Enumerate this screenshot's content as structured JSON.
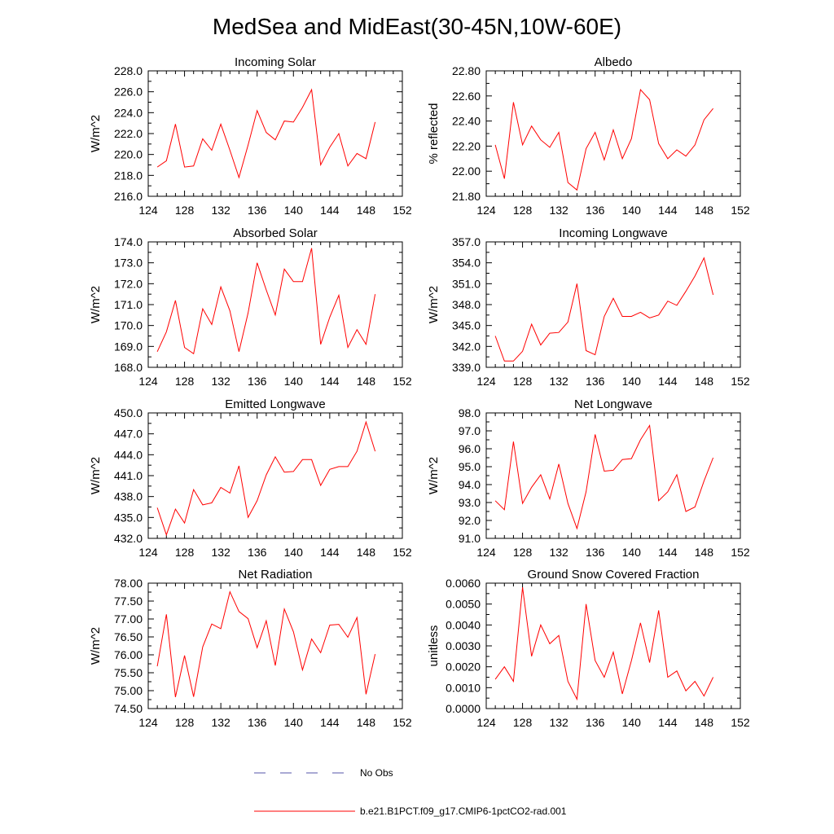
{
  "figure": {
    "title": "MedSea and MidEast(30-45N,10W-60E)"
  },
  "colors": {
    "model": "#ff0000",
    "obs": "#5555aa",
    "frame": "#000000"
  },
  "legend": {
    "placement": "bottom-center",
    "items": [
      {
        "label": "No Obs",
        "style": "dashed",
        "color": "#5555aa"
      },
      {
        "label": "b.e21.B1PCT.f09_g17.CMIP6-1pctCO2-rad.001",
        "style": "solid",
        "color": "#ff0000"
      }
    ]
  },
  "chart_data": [
    {
      "type": "line",
      "title": "Incoming Solar",
      "ylabel": "W/m^2",
      "xlabel": "",
      "xlim": [
        124,
        152
      ],
      "xticks": [
        "124",
        "128",
        "132",
        "136",
        "140",
        "144",
        "148",
        "152"
      ],
      "ylim": [
        216,
        228
      ],
      "yticks": [
        "216.0",
        "218.0",
        "220.0",
        "222.0",
        "224.0",
        "226.0",
        "228.0"
      ],
      "series": [
        {
          "color": "#ff0000",
          "x": [
            125,
            126,
            127,
            128,
            129,
            130,
            131,
            132,
            133,
            134,
            135,
            136,
            137,
            138,
            139,
            140,
            141,
            142,
            143,
            144,
            145,
            146,
            147,
            148,
            149
          ],
          "y": [
            218.8,
            219.4,
            222.9,
            218.8,
            218.9,
            221.5,
            220.4,
            222.9,
            220.4,
            217.8,
            220.9,
            224.2,
            222.1,
            221.4,
            223.2,
            223.1,
            224.5,
            226.2,
            219.0,
            220.7,
            222.0,
            218.9,
            220.1,
            219.6,
            223.1
          ]
        }
      ]
    },
    {
      "type": "line",
      "title": "Albedo",
      "ylabel": "% reflected",
      "xlabel": "",
      "xlim": [
        124,
        152
      ],
      "xticks": [
        "124",
        "128",
        "132",
        "136",
        "140",
        "144",
        "148",
        "152"
      ],
      "ylim": [
        21.8,
        22.8
      ],
      "yticks": [
        "21.80",
        "22.00",
        "22.20",
        "22.40",
        "22.60",
        "22.80"
      ],
      "series": [
        {
          "color": "#ff0000",
          "x": [
            125,
            126,
            127,
            128,
            129,
            130,
            131,
            132,
            133,
            134,
            135,
            136,
            137,
            138,
            139,
            140,
            141,
            142,
            143,
            144,
            145,
            146,
            147,
            148,
            149
          ],
          "y": [
            22.21,
            21.94,
            22.55,
            22.21,
            22.36,
            22.25,
            22.19,
            22.31,
            21.91,
            21.85,
            22.18,
            22.31,
            22.09,
            22.33,
            22.1,
            22.26,
            22.65,
            22.57,
            22.22,
            22.1,
            22.17,
            22.12,
            22.21,
            22.41,
            22.5
          ]
        }
      ]
    },
    {
      "type": "line",
      "title": "Absorbed Solar",
      "ylabel": "W/m^2",
      "xlabel": "",
      "xlim": [
        124,
        152
      ],
      "xticks": [
        "124",
        "128",
        "132",
        "136",
        "140",
        "144",
        "148",
        "152"
      ],
      "ylim": [
        168,
        174
      ],
      "yticks": [
        "168.0",
        "169.0",
        "170.0",
        "171.0",
        "172.0",
        "173.0",
        "174.0"
      ],
      "series": [
        {
          "color": "#ff0000",
          "x": [
            125,
            126,
            127,
            128,
            129,
            130,
            131,
            132,
            133,
            134,
            135,
            136,
            137,
            138,
            139,
            140,
            141,
            142,
            143,
            144,
            145,
            146,
            147,
            148,
            149
          ],
          "y": [
            168.75,
            169.7,
            171.2,
            168.95,
            168.65,
            170.8,
            170.05,
            171.85,
            170.7,
            168.75,
            170.6,
            173.0,
            171.7,
            170.5,
            172.7,
            172.1,
            172.1,
            173.7,
            169.1,
            170.4,
            171.45,
            168.95,
            169.8,
            169.1,
            171.5
          ]
        }
      ]
    },
    {
      "type": "line",
      "title": "Incoming Longwave",
      "ylabel": "W/m^2",
      "xlabel": "",
      "xlim": [
        124,
        152
      ],
      "xticks": [
        "124",
        "128",
        "132",
        "136",
        "140",
        "144",
        "148",
        "152"
      ],
      "ylim": [
        339,
        357
      ],
      "yticks": [
        "339.0",
        "342.0",
        "345.0",
        "348.0",
        "351.0",
        "354.0",
        "357.0"
      ],
      "series": [
        {
          "color": "#ff0000",
          "x": [
            125,
            126,
            127,
            128,
            129,
            130,
            131,
            132,
            133,
            134,
            135,
            136,
            137,
            138,
            139,
            140,
            141,
            142,
            143,
            144,
            145,
            146,
            147,
            148,
            149
          ],
          "y": [
            343.5,
            339.9,
            339.9,
            341.3,
            345.2,
            342.2,
            343.9,
            344.0,
            345.5,
            351.0,
            341.4,
            340.8,
            346.3,
            348.9,
            346.3,
            346.3,
            346.9,
            346.1,
            346.5,
            348.5,
            347.9,
            349.9,
            352.1,
            354.7,
            349.4
          ]
        }
      ]
    },
    {
      "type": "line",
      "title": "Emitted Longwave",
      "ylabel": "W/m^2",
      "xlabel": "",
      "xlim": [
        124,
        152
      ],
      "xticks": [
        "124",
        "128",
        "132",
        "136",
        "140",
        "144",
        "148",
        "152"
      ],
      "ylim": [
        432,
        450
      ],
      "yticks": [
        "432.0",
        "435.0",
        "438.0",
        "441.0",
        "444.0",
        "447.0",
        "450.0"
      ],
      "series": [
        {
          "color": "#ff0000",
          "x": [
            125,
            126,
            127,
            128,
            129,
            130,
            131,
            132,
            133,
            134,
            135,
            136,
            137,
            138,
            139,
            140,
            141,
            142,
            143,
            144,
            145,
            146,
            147,
            148,
            149
          ],
          "y": [
            436.4,
            432.5,
            436.2,
            434.2,
            439.0,
            436.8,
            437.1,
            439.3,
            438.5,
            442.4,
            435.0,
            437.4,
            441.1,
            443.7,
            441.5,
            441.6,
            443.3,
            443.3,
            439.6,
            441.9,
            442.3,
            442.3,
            444.5,
            448.7,
            444.5
          ]
        }
      ]
    },
    {
      "type": "line",
      "title": "Net Longwave",
      "ylabel": "W/m^2",
      "xlabel": "",
      "xlim": [
        124,
        152
      ],
      "xticks": [
        "124",
        "128",
        "132",
        "136",
        "140",
        "144",
        "148",
        "152"
      ],
      "ylim": [
        91,
        98
      ],
      "yticks": [
        "91.0",
        "92.0",
        "93.0",
        "94.0",
        "95.0",
        "96.0",
        "97.0",
        "98.0"
      ],
      "series": [
        {
          "color": "#ff0000",
          "x": [
            125,
            126,
            127,
            128,
            129,
            130,
            131,
            132,
            133,
            134,
            135,
            136,
            137,
            138,
            139,
            140,
            141,
            142,
            143,
            144,
            145,
            146,
            147,
            148,
            149
          ],
          "y": [
            93.1,
            92.6,
            96.4,
            92.95,
            93.85,
            94.55,
            93.2,
            95.15,
            92.95,
            91.55,
            93.6,
            96.8,
            94.75,
            94.8,
            95.4,
            95.45,
            96.5,
            97.3,
            93.1,
            93.6,
            94.55,
            92.5,
            92.75,
            94.2,
            95.5
          ]
        }
      ]
    },
    {
      "type": "line",
      "title": "Net Radiation",
      "ylabel": "W/m^2",
      "xlabel": "",
      "xlim": [
        124,
        152
      ],
      "xticks": [
        "124",
        "128",
        "132",
        "136",
        "140",
        "144",
        "148",
        "152"
      ],
      "ylim": [
        74.5,
        78
      ],
      "yticks": [
        "74.50",
        "75.00",
        "75.50",
        "76.00",
        "76.50",
        "77.00",
        "77.50",
        "78.00"
      ],
      "series": [
        {
          "color": "#ff0000",
          "x": [
            125,
            126,
            127,
            128,
            129,
            130,
            131,
            132,
            133,
            134,
            135,
            136,
            137,
            138,
            139,
            140,
            141,
            142,
            143,
            144,
            145,
            146,
            147,
            148,
            149
          ],
          "y": [
            75.68,
            77.13,
            74.82,
            75.98,
            74.83,
            76.22,
            76.86,
            76.73,
            77.76,
            77.21,
            77.01,
            76.2,
            76.95,
            75.7,
            77.28,
            76.64,
            75.58,
            76.44,
            76.06,
            76.83,
            76.85,
            76.49,
            77.04,
            74.9,
            76.02
          ]
        }
      ]
    },
    {
      "type": "line",
      "title": "Ground Snow Covered Fraction",
      "ylabel": "unitless",
      "xlabel": "",
      "xlim": [
        124,
        152
      ],
      "xticks": [
        "124",
        "128",
        "132",
        "136",
        "140",
        "144",
        "148",
        "152"
      ],
      "ylim": [
        0,
        0.006
      ],
      "yticks": [
        "0.0000",
        "0.0010",
        "0.0020",
        "0.0030",
        "0.0040",
        "0.0050",
        "0.0060"
      ],
      "series": [
        {
          "color": "#ff0000",
          "x": [
            125,
            126,
            127,
            128,
            129,
            130,
            131,
            132,
            133,
            134,
            135,
            136,
            137,
            138,
            139,
            140,
            141,
            142,
            143,
            144,
            145,
            146,
            147,
            148,
            149
          ],
          "y": [
            0.0014,
            0.002,
            0.0013,
            0.0058,
            0.0025,
            0.004,
            0.0031,
            0.0035,
            0.0013,
            0.00045,
            0.005,
            0.0023,
            0.0015,
            0.0027,
            0.0007,
            0.0023,
            0.0041,
            0.0022,
            0.0047,
            0.0015,
            0.0018,
            0.00085,
            0.0013,
            0.0006,
            0.0015
          ]
        }
      ]
    }
  ]
}
